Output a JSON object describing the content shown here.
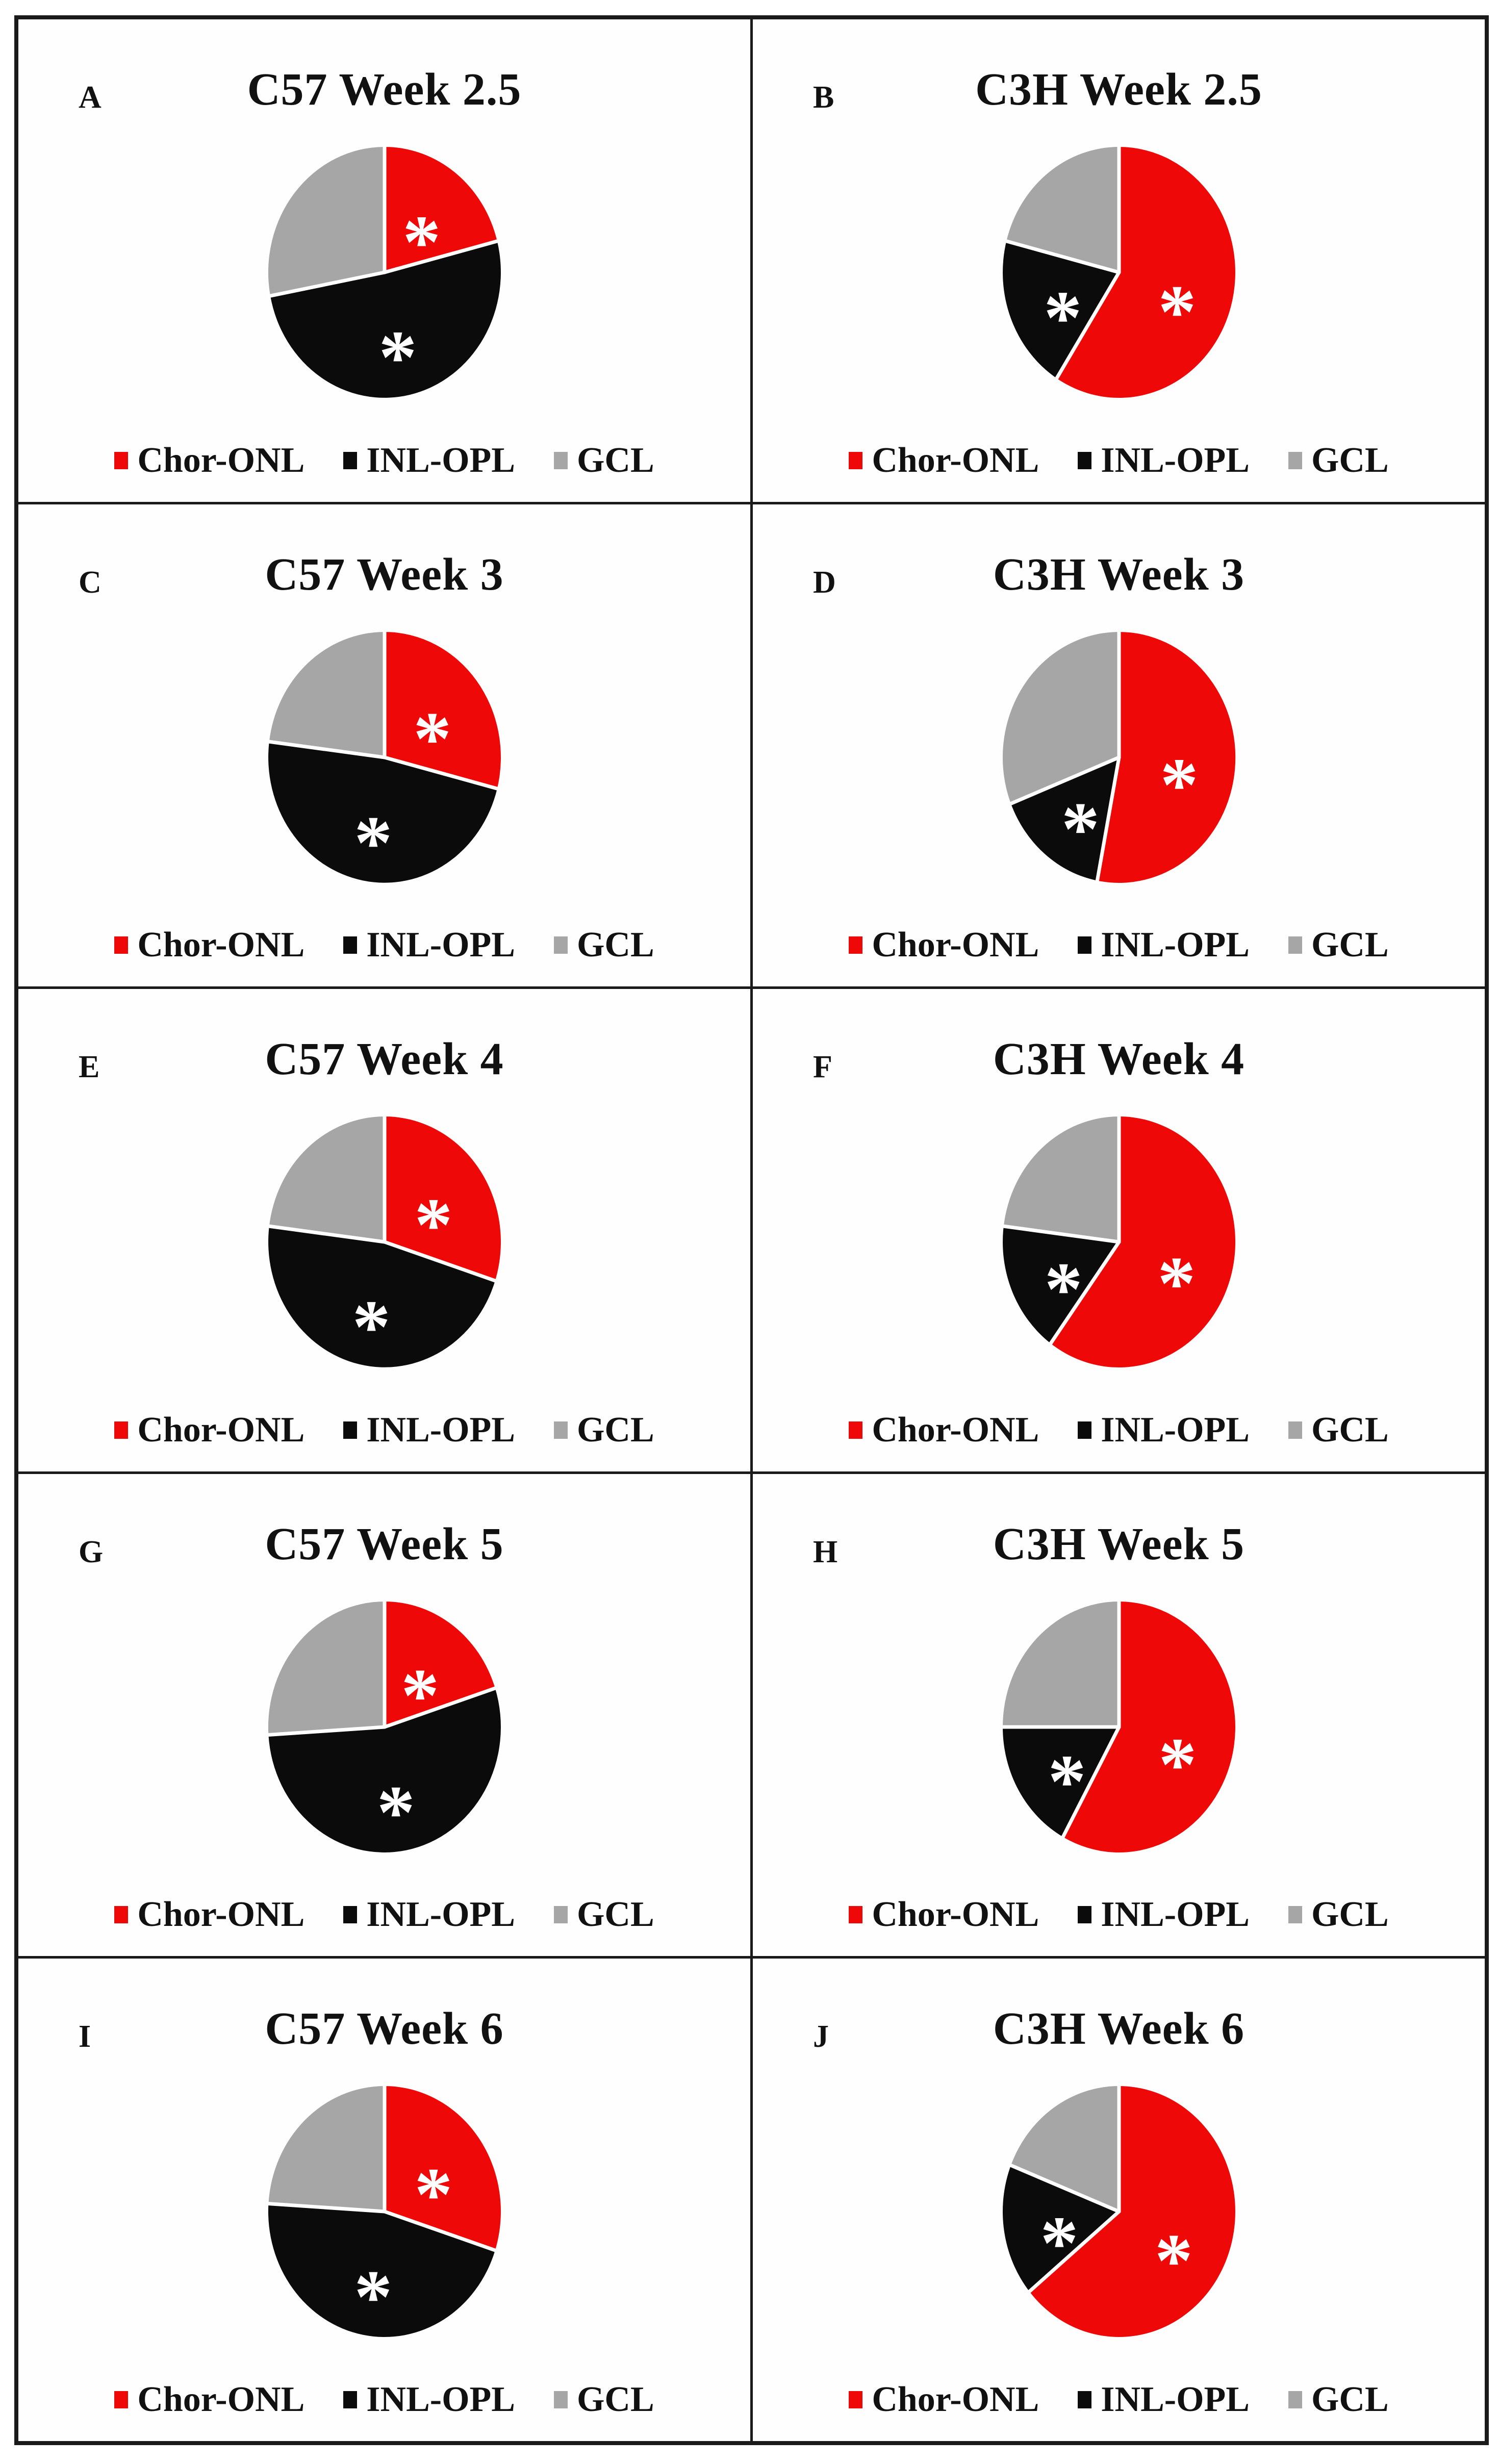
{
  "figure": {
    "background": "#ffffff",
    "frame_border_color": "#1a1a1a",
    "slice_separator_color": "#ffffff",
    "layout": "5 rows x 2 columns of pie chart panels; C57 strain in left column, C3H strain in right column"
  },
  "colors": {
    "chor_onl": "#ee0808",
    "inl_opl": "#0b0b0b",
    "gcl": "#a6a6a6",
    "asterisk": "#ffffff"
  },
  "asterisk_symbol": "*",
  "legend_labels": [
    "Chor-ONL",
    "INL-OPL",
    "GCL"
  ],
  "chart_data": [
    {
      "type": "pie",
      "panel_letter": "A",
      "title": "C57 Week 2.5",
      "categories": [
        "Chor-ONL",
        "INL-OPL",
        "GCL"
      ],
      "values": [
        21,
        51,
        28
      ],
      "asterisk_on": [
        "Chor-ONL",
        "INL-OPL"
      ],
      "start_angle": "12 o'clock",
      "direction": "clockwise",
      "legend_position": "bottom"
    },
    {
      "type": "pie",
      "panel_letter": "B",
      "title": "C3H Week 2.5",
      "categories": [
        "Chor-ONL",
        "INL-OPL",
        "GCL"
      ],
      "values": [
        59,
        20,
        21
      ],
      "asterisk_on": [
        "Chor-ONL",
        "INL-OPL"
      ],
      "start_angle": "12 o'clock",
      "direction": "clockwise",
      "legend_position": "bottom"
    },
    {
      "type": "pie",
      "panel_letter": "C",
      "title": "C57 Week 3",
      "categories": [
        "Chor-ONL",
        "INL-OPL",
        "GCL"
      ],
      "values": [
        29,
        48,
        23
      ],
      "asterisk_on": [
        "Chor-ONL",
        "INL-OPL"
      ],
      "start_angle": "12 o'clock",
      "direction": "clockwise",
      "legend_position": "bottom"
    },
    {
      "type": "pie",
      "panel_letter": "D",
      "title": "C3H Week 3",
      "categories": [
        "Chor-ONL",
        "INL-OPL",
        "GCL"
      ],
      "values": [
        53,
        16,
        31
      ],
      "asterisk_on": [
        "Chor-ONL",
        "INL-OPL"
      ],
      "start_angle": "12 o'clock",
      "direction": "clockwise",
      "legend_position": "bottom"
    },
    {
      "type": "pie",
      "panel_letter": "E",
      "title": "C57 Week 4",
      "categories": [
        "Chor-ONL",
        "INL-OPL",
        "GCL"
      ],
      "values": [
        30,
        47,
        23
      ],
      "asterisk_on": [
        "Chor-ONL",
        "INL-OPL"
      ],
      "start_angle": "12 o'clock",
      "direction": "clockwise",
      "legend_position": "bottom"
    },
    {
      "type": "pie",
      "panel_letter": "F",
      "title": "C3H Week 4",
      "categories": [
        "Chor-ONL",
        "INL-OPL",
        "GCL"
      ],
      "values": [
        60,
        17,
        23
      ],
      "asterisk_on": [
        "Chor-ONL",
        "INL-OPL"
      ],
      "start_angle": "12 o'clock",
      "direction": "clockwise",
      "legend_position": "bottom"
    },
    {
      "type": "pie",
      "panel_letter": "G",
      "title": "C57 Week 5",
      "categories": [
        "Chor-ONL",
        "INL-OPL",
        "GCL"
      ],
      "values": [
        20,
        54,
        26
      ],
      "asterisk_on": [
        "Chor-ONL",
        "INL-OPL"
      ],
      "start_angle": "12 o'clock",
      "direction": "clockwise",
      "legend_position": "bottom"
    },
    {
      "type": "pie",
      "panel_letter": "H",
      "title": "C3H Week 5",
      "categories": [
        "Chor-ONL",
        "INL-OPL",
        "GCL"
      ],
      "values": [
        58,
        17,
        25
      ],
      "asterisk_on": [
        "Chor-ONL",
        "INL-OPL"
      ],
      "start_angle": "12 o'clock",
      "direction": "clockwise",
      "legend_position": "bottom"
    },
    {
      "type": "pie",
      "panel_letter": "I",
      "title": "C57 Week 6",
      "categories": [
        "Chor-ONL",
        "INL-OPL",
        "GCL"
      ],
      "values": [
        30,
        46,
        24
      ],
      "asterisk_on": [
        "Chor-ONL",
        "INL-OPL"
      ],
      "start_angle": "12 o'clock",
      "direction": "clockwise",
      "legend_position": "bottom"
    },
    {
      "type": "pie",
      "panel_letter": "J",
      "title": "C3H Week 6",
      "categories": [
        "Chor-ONL",
        "INL-OPL",
        "GCL"
      ],
      "values": [
        64,
        17,
        19
      ],
      "asterisk_on": [
        "Chor-ONL",
        "INL-OPL"
      ],
      "start_angle": "12 o'clock",
      "direction": "clockwise",
      "legend_position": "bottom"
    }
  ]
}
